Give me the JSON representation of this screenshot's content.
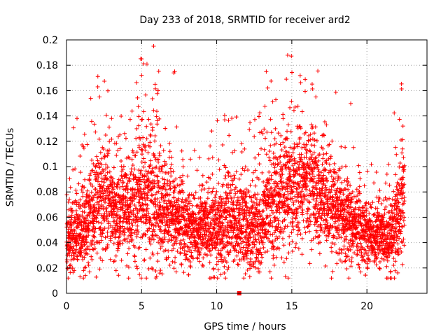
{
  "chart_data": {
    "type": "scatter",
    "title": "Day 233 of 2018, SRMTID for receiver ard2",
    "xlabel": "GPS time / hours",
    "ylabel": "SRMTID / TECUs",
    "xlim": [
      0,
      24
    ],
    "ylim": [
      0,
      0.2
    ],
    "xticks": [
      "0",
      "5",
      "10",
      "15",
      "20"
    ],
    "yticks": [
      "0",
      "0.02",
      "0.04",
      "0.06",
      "0.08",
      "0.1",
      "0.12",
      "0.14",
      "0.16",
      "0.18",
      "0.2"
    ],
    "grid": true,
    "marker": "+",
    "marker_color": "#ff0000",
    "highlight_marker": "square",
    "sample_interval_hours": 0.0125,
    "highlight_points": [
      {
        "x": 11.5,
        "y": 0.0
      }
    ],
    "notable_points": [
      {
        "x": 5.8,
        "y": 0.195
      },
      {
        "x": 5.0,
        "y": 0.185
      },
      {
        "x": 5.0,
        "y": 0.172
      },
      {
        "x": 7.2,
        "y": 0.175
      },
      {
        "x": 13.3,
        "y": 0.175
      },
      {
        "x": 5.9,
        "y": 0.165
      },
      {
        "x": 6.1,
        "y": 0.16
      },
      {
        "x": 13.4,
        "y": 0.162
      },
      {
        "x": 16.6,
        "y": 0.155
      },
      {
        "x": 2.2,
        "y": 0.155
      },
      {
        "x": 0.7,
        "y": 0.138
      },
      {
        "x": 3.0,
        "y": 0.138
      },
      {
        "x": 22.4,
        "y": 0.132
      },
      {
        "x": 3.3,
        "y": 0.018
      },
      {
        "x": 7.3,
        "y": 0.017
      },
      {
        "x": 12.2,
        "y": 0.013
      },
      {
        "x": 0.9,
        "y": 0.013
      },
      {
        "x": 10.5,
        "y": 0.016
      },
      {
        "x": 19.5,
        "y": 0.02
      }
    ],
    "envelope": {
      "hours": [
        0,
        1,
        2,
        2.5,
        3,
        4,
        5,
        6,
        7,
        8,
        9,
        10,
        11,
        12,
        13,
        14,
        15,
        16,
        16.8,
        17.5,
        18,
        19,
        20,
        21,
        21.5,
        22,
        22.5
      ],
      "typical": [
        0.045,
        0.05,
        0.07,
        0.075,
        0.068,
        0.065,
        0.078,
        0.07,
        0.062,
        0.055,
        0.052,
        0.052,
        0.06,
        0.05,
        0.058,
        0.075,
        0.085,
        0.085,
        0.08,
        0.07,
        0.065,
        0.055,
        0.05,
        0.045,
        0.042,
        0.06,
        0.08
      ],
      "spread": [
        0.015,
        0.016,
        0.02,
        0.022,
        0.02,
        0.02,
        0.024,
        0.022,
        0.02,
        0.016,
        0.014,
        0.016,
        0.02,
        0.018,
        0.02,
        0.022,
        0.024,
        0.024,
        0.022,
        0.02,
        0.018,
        0.016,
        0.014,
        0.012,
        0.012,
        0.02,
        0.02
      ]
    }
  }
}
